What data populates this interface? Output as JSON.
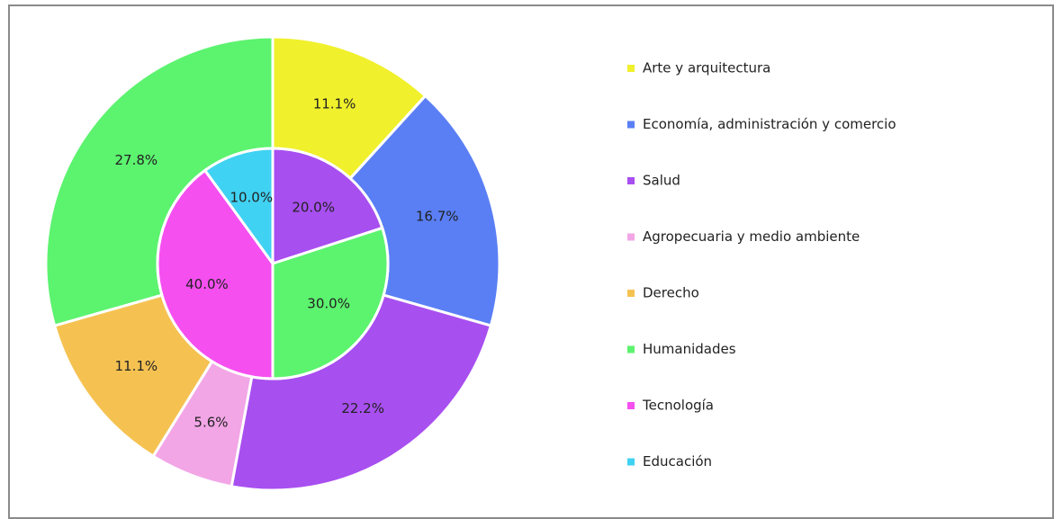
{
  "chart_data": {
    "type": "pie",
    "categories": [
      "Arte y arquitectura",
      "Economía, administración y comercio",
      "Salud",
      "Agropecuaria y medio ambiente",
      "Derecho",
      "Humanidades",
      "Tecnología",
      "Educación"
    ],
    "colors": [
      "#f0f02c",
      "#5a7ff5",
      "#a84ff0",
      "#f2a6e6",
      "#f5c252",
      "#5cf36f",
      "#f54ff0",
      "#40d2f2"
    ],
    "rings": [
      {
        "categories": [
          "Arte y arquitectura",
          "Economía, administración y comercio",
          "Salud",
          "Agropecuaria y medio ambiente",
          "Derecho",
          "Humanidades"
        ],
        "values": [
          11.1,
          16.7,
          22.2,
          5.6,
          11.1,
          27.8
        ],
        "value_labels": [
          "11.1%",
          "16.7%",
          "22.2%",
          "5.6%",
          "11.1%",
          "27.8%"
        ]
      },
      {
        "categories": [
          "Salud",
          "Humanidades",
          "Tecnología",
          "Educación"
        ],
        "values": [
          20.0,
          30.0,
          40.0,
          10.0
        ],
        "value_labels": [
          "20.0%",
          "30.0%",
          "40.0%",
          "10.0%"
        ]
      }
    ],
    "legend": "right"
  }
}
